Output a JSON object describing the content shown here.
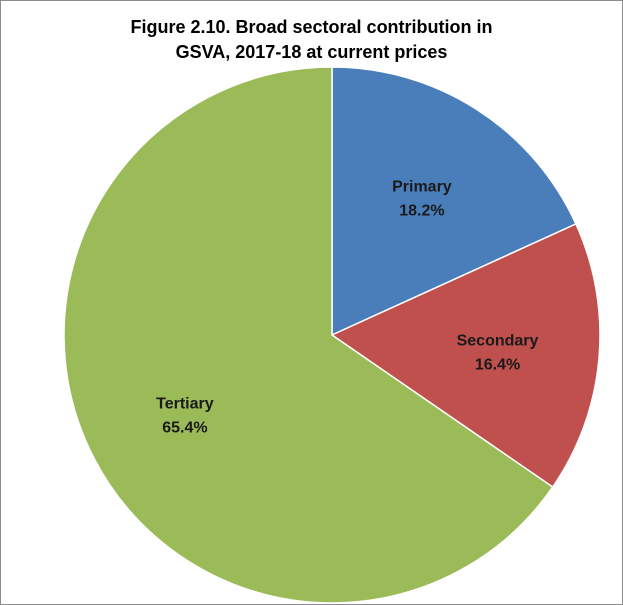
{
  "chart_data": {
    "type": "pie",
    "title_lines": [
      "Figure 2.10. Broad sectoral contribution in",
      "GSVA, 2017-18 at current prices"
    ],
    "slices": [
      {
        "name": "Primary",
        "value": 18.2,
        "label": "18.2%",
        "color": "#4a7ebb"
      },
      {
        "name": "Secondary",
        "value": 16.4,
        "label": "16.4%",
        "color": "#c0504d"
      },
      {
        "name": "Tertiary",
        "value": 65.4,
        "label": "65.4%",
        "color": "#9bbb59"
      }
    ],
    "start": "12 o'clock",
    "direction": "clockwise",
    "legend": "none"
  }
}
